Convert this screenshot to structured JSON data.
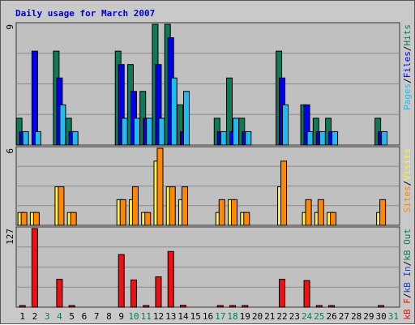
{
  "chart_data": {
    "type": "bar",
    "title": "Daily usage for March 2007",
    "days": [
      "1",
      "2",
      "3",
      "4",
      "5",
      "6",
      "7",
      "8",
      "9",
      "10",
      "11",
      "12",
      "13",
      "14",
      "15",
      "16",
      "17",
      "18",
      "19",
      "20",
      "21",
      "22",
      "23",
      "24",
      "25",
      "26",
      "27",
      "28",
      "29",
      "30",
      "31"
    ],
    "weekend_days": [
      "3",
      "4",
      "10",
      "11",
      "17",
      "18",
      "24",
      "25",
      "31"
    ],
    "colors": {
      "hits": "#0e7a5a",
      "files": "#0000ee",
      "pages": "#22bbee",
      "visits": "#ffee44",
      "sites": "#ff8800",
      "kb_in": "#1a3fcc",
      "kb_out": "#0e7a5a",
      "kb_f": "#ee1111",
      "weekday_label": "#000000",
      "weekend_label": "#00805a",
      "title": "#0000cc"
    },
    "panels": [
      {
        "id": "hits_files_pages",
        "ymax": 9,
        "ymax_label": "9",
        "legend": [
          {
            "text": "Pages",
            "color": "#22bbee"
          },
          {
            "text": "/",
            "color": "#000000"
          },
          {
            "text": "Files",
            "color": "#0000ee"
          },
          {
            "text": "/",
            "color": "#000000"
          },
          {
            "text": "Hits",
            "color": "#0e7a5a"
          }
        ],
        "series": [
          {
            "name": "Hits",
            "values": [
              2,
              0,
              0,
              7,
              2,
              0,
              0,
              0,
              7,
              6,
              4,
              9,
              9,
              3,
              0,
              0,
              2,
              5,
              2,
              0,
              0,
              7,
              0,
              3,
              2,
              2,
              0,
              0,
              0,
              2,
              0
            ]
          },
          {
            "name": "Files",
            "values": [
              1,
              7,
              0,
              5,
              1,
              0,
              0,
              0,
              6,
              4,
              2,
              6,
              8,
              1,
              0,
              0,
              1,
              1,
              1,
              0,
              0,
              5,
              0,
              3,
              1,
              1,
              0,
              0,
              0,
              1,
              0
            ]
          },
          {
            "name": "Pages",
            "values": [
              1,
              1,
              0,
              3,
              1,
              0,
              0,
              0,
              2,
              2,
              2,
              2,
              5,
              4,
              0,
              0,
              1,
              2,
              1,
              0,
              0,
              3,
              0,
              1,
              1,
              1,
              0,
              0,
              0,
              1,
              0
            ]
          }
        ]
      },
      {
        "id": "visits_sites",
        "ymax": 6,
        "ymax_label": "6",
        "legend": [
          {
            "text": "Sites",
            "color": "#ff8800"
          },
          {
            "text": "/",
            "color": "#000000"
          },
          {
            "text": "Visits",
            "color": "#ffee44"
          }
        ],
        "series": [
          {
            "name": "Visits",
            "values": [
              1,
              1,
              0,
              3,
              1,
              0,
              0,
              0,
              2,
              2,
              1,
              5,
              3,
              2,
              0,
              0,
              1,
              2,
              1,
              0,
              0,
              3,
              0,
              1,
              1,
              1,
              0,
              0,
              0,
              1,
              0
            ]
          },
          {
            "name": "Sites",
            "values": [
              1,
              1,
              0,
              3,
              1,
              0,
              0,
              0,
              2,
              3,
              1,
              6,
              3,
              3,
              0,
              0,
              2,
              2,
              1,
              0,
              0,
              5,
              0,
              2,
              2,
              1,
              0,
              0,
              0,
              2,
              0
            ]
          }
        ]
      },
      {
        "id": "kbytes",
        "ymax": 127,
        "ymax_label": "127",
        "legend": [
          {
            "text": "kB F",
            "color": "#ee1111"
          },
          {
            "text": "/",
            "color": "#000000"
          },
          {
            "text": "kB In",
            "color": "#1a3fcc"
          },
          {
            "text": "/",
            "color": "#000000"
          },
          {
            "text": "kB Out",
            "color": "#0e7a5a"
          }
        ],
        "series": [
          {
            "name": "kB F",
            "values": [
              2,
              127,
              0,
              45,
              2,
              0,
              0,
              0,
              85,
              44,
              2,
              49,
              90,
              3,
              0,
              0,
              2,
              2,
              2,
              0,
              0,
              45,
              0,
              43,
              2,
              2,
              0,
              0,
              0,
              2,
              0
            ]
          }
        ]
      }
    ]
  }
}
